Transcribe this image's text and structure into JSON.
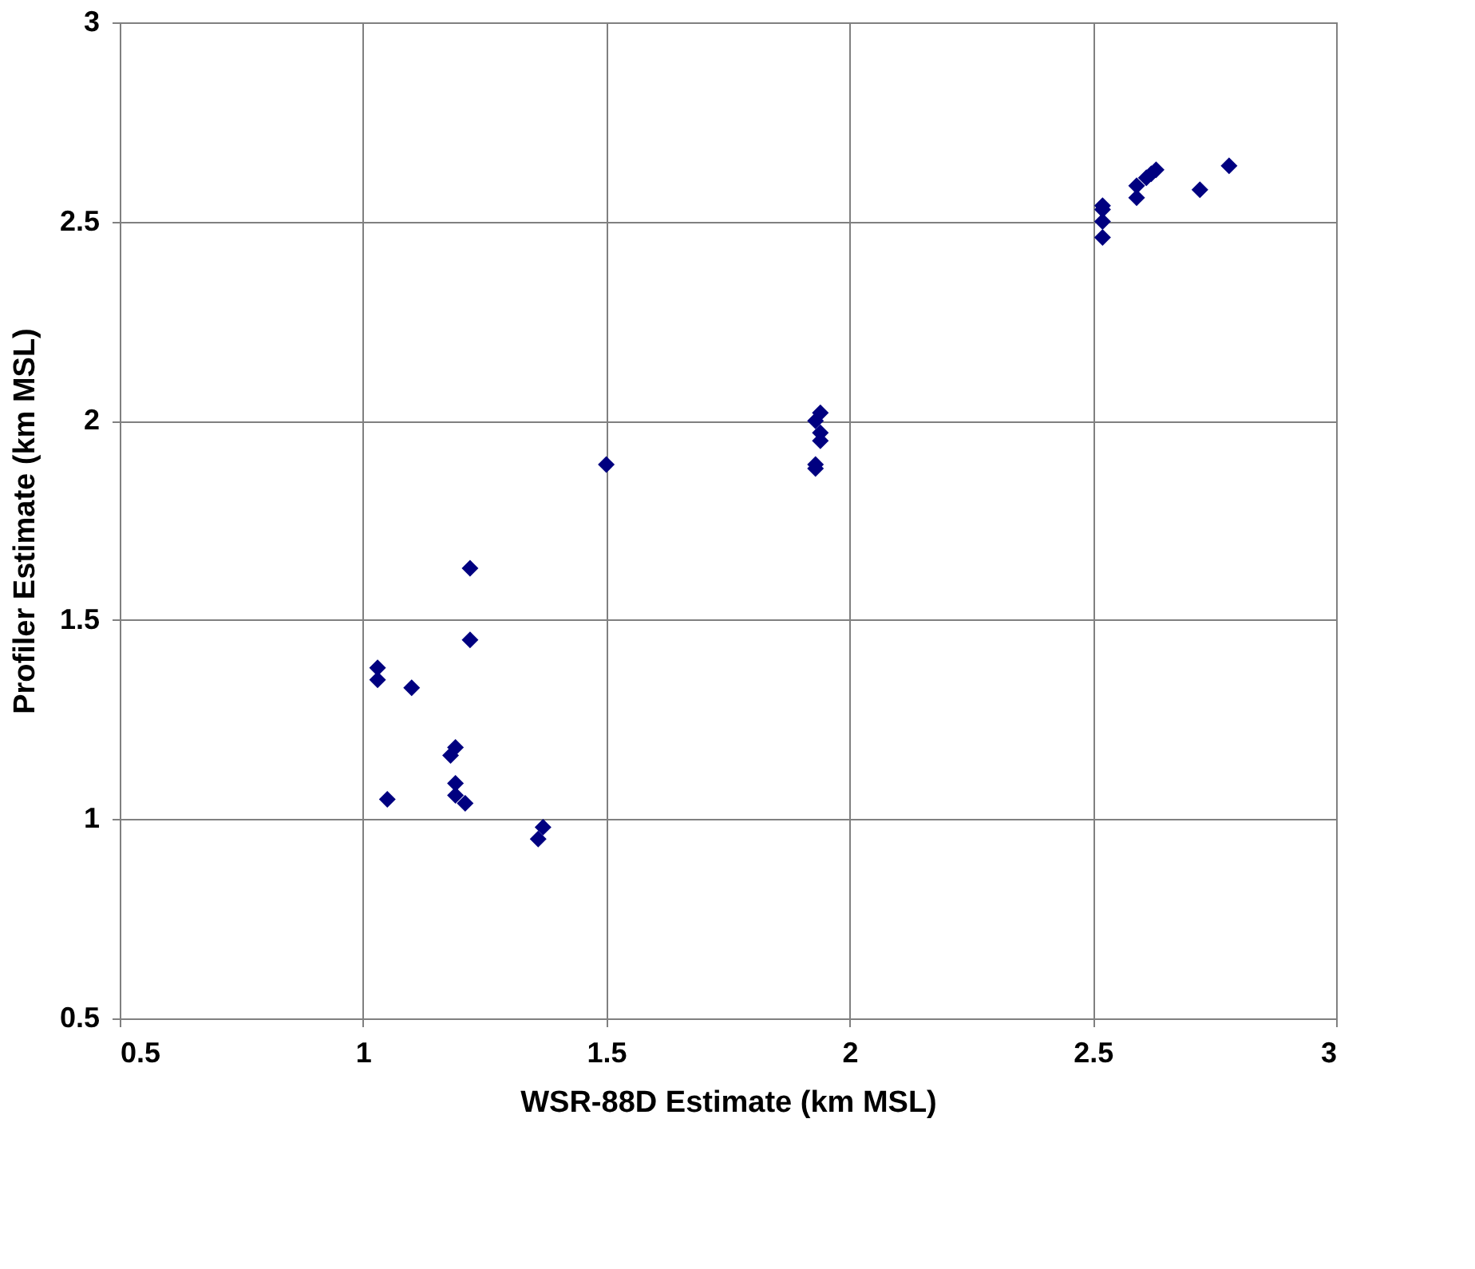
{
  "chart_data": {
    "type": "scatter",
    "xlabel": "WSR-88D Estimate (km MSL)",
    "ylabel": "Profiler Estimate (km MSL)",
    "x": [
      1.22,
      1.22,
      1.03,
      1.03,
      1.1,
      1.18,
      1.19,
      1.19,
      1.19,
      1.21,
      1.05,
      1.37,
      1.36,
      1.5,
      1.93,
      1.93,
      1.93,
      1.94,
      1.94,
      1.94,
      2.52,
      2.52,
      2.52,
      2.52,
      2.59,
      2.59,
      2.61,
      2.62,
      2.63,
      2.72,
      2.78
    ],
    "series": [
      {
        "color": "#000080",
        "values": [
          1.63,
          1.45,
          1.38,
          1.35,
          1.33,
          1.16,
          1.18,
          1.09,
          1.06,
          1.04,
          1.05,
          0.98,
          0.95,
          1.89,
          1.88,
          1.89,
          2.0,
          2.02,
          1.97,
          1.95,
          2.46,
          2.5,
          2.53,
          2.54,
          2.56,
          2.59,
          2.61,
          2.62,
          2.63,
          2.58,
          2.64
        ]
      }
    ],
    "xlim": [
      0.5,
      3
    ],
    "xticks": [
      0.5,
      1,
      1.5,
      2,
      2.5,
      3
    ],
    "ylim": [
      0.5,
      3
    ],
    "yticks": [
      0.5,
      1,
      1.5,
      2,
      2.5,
      3
    ],
    "grid": true,
    "marker": "diamond"
  }
}
